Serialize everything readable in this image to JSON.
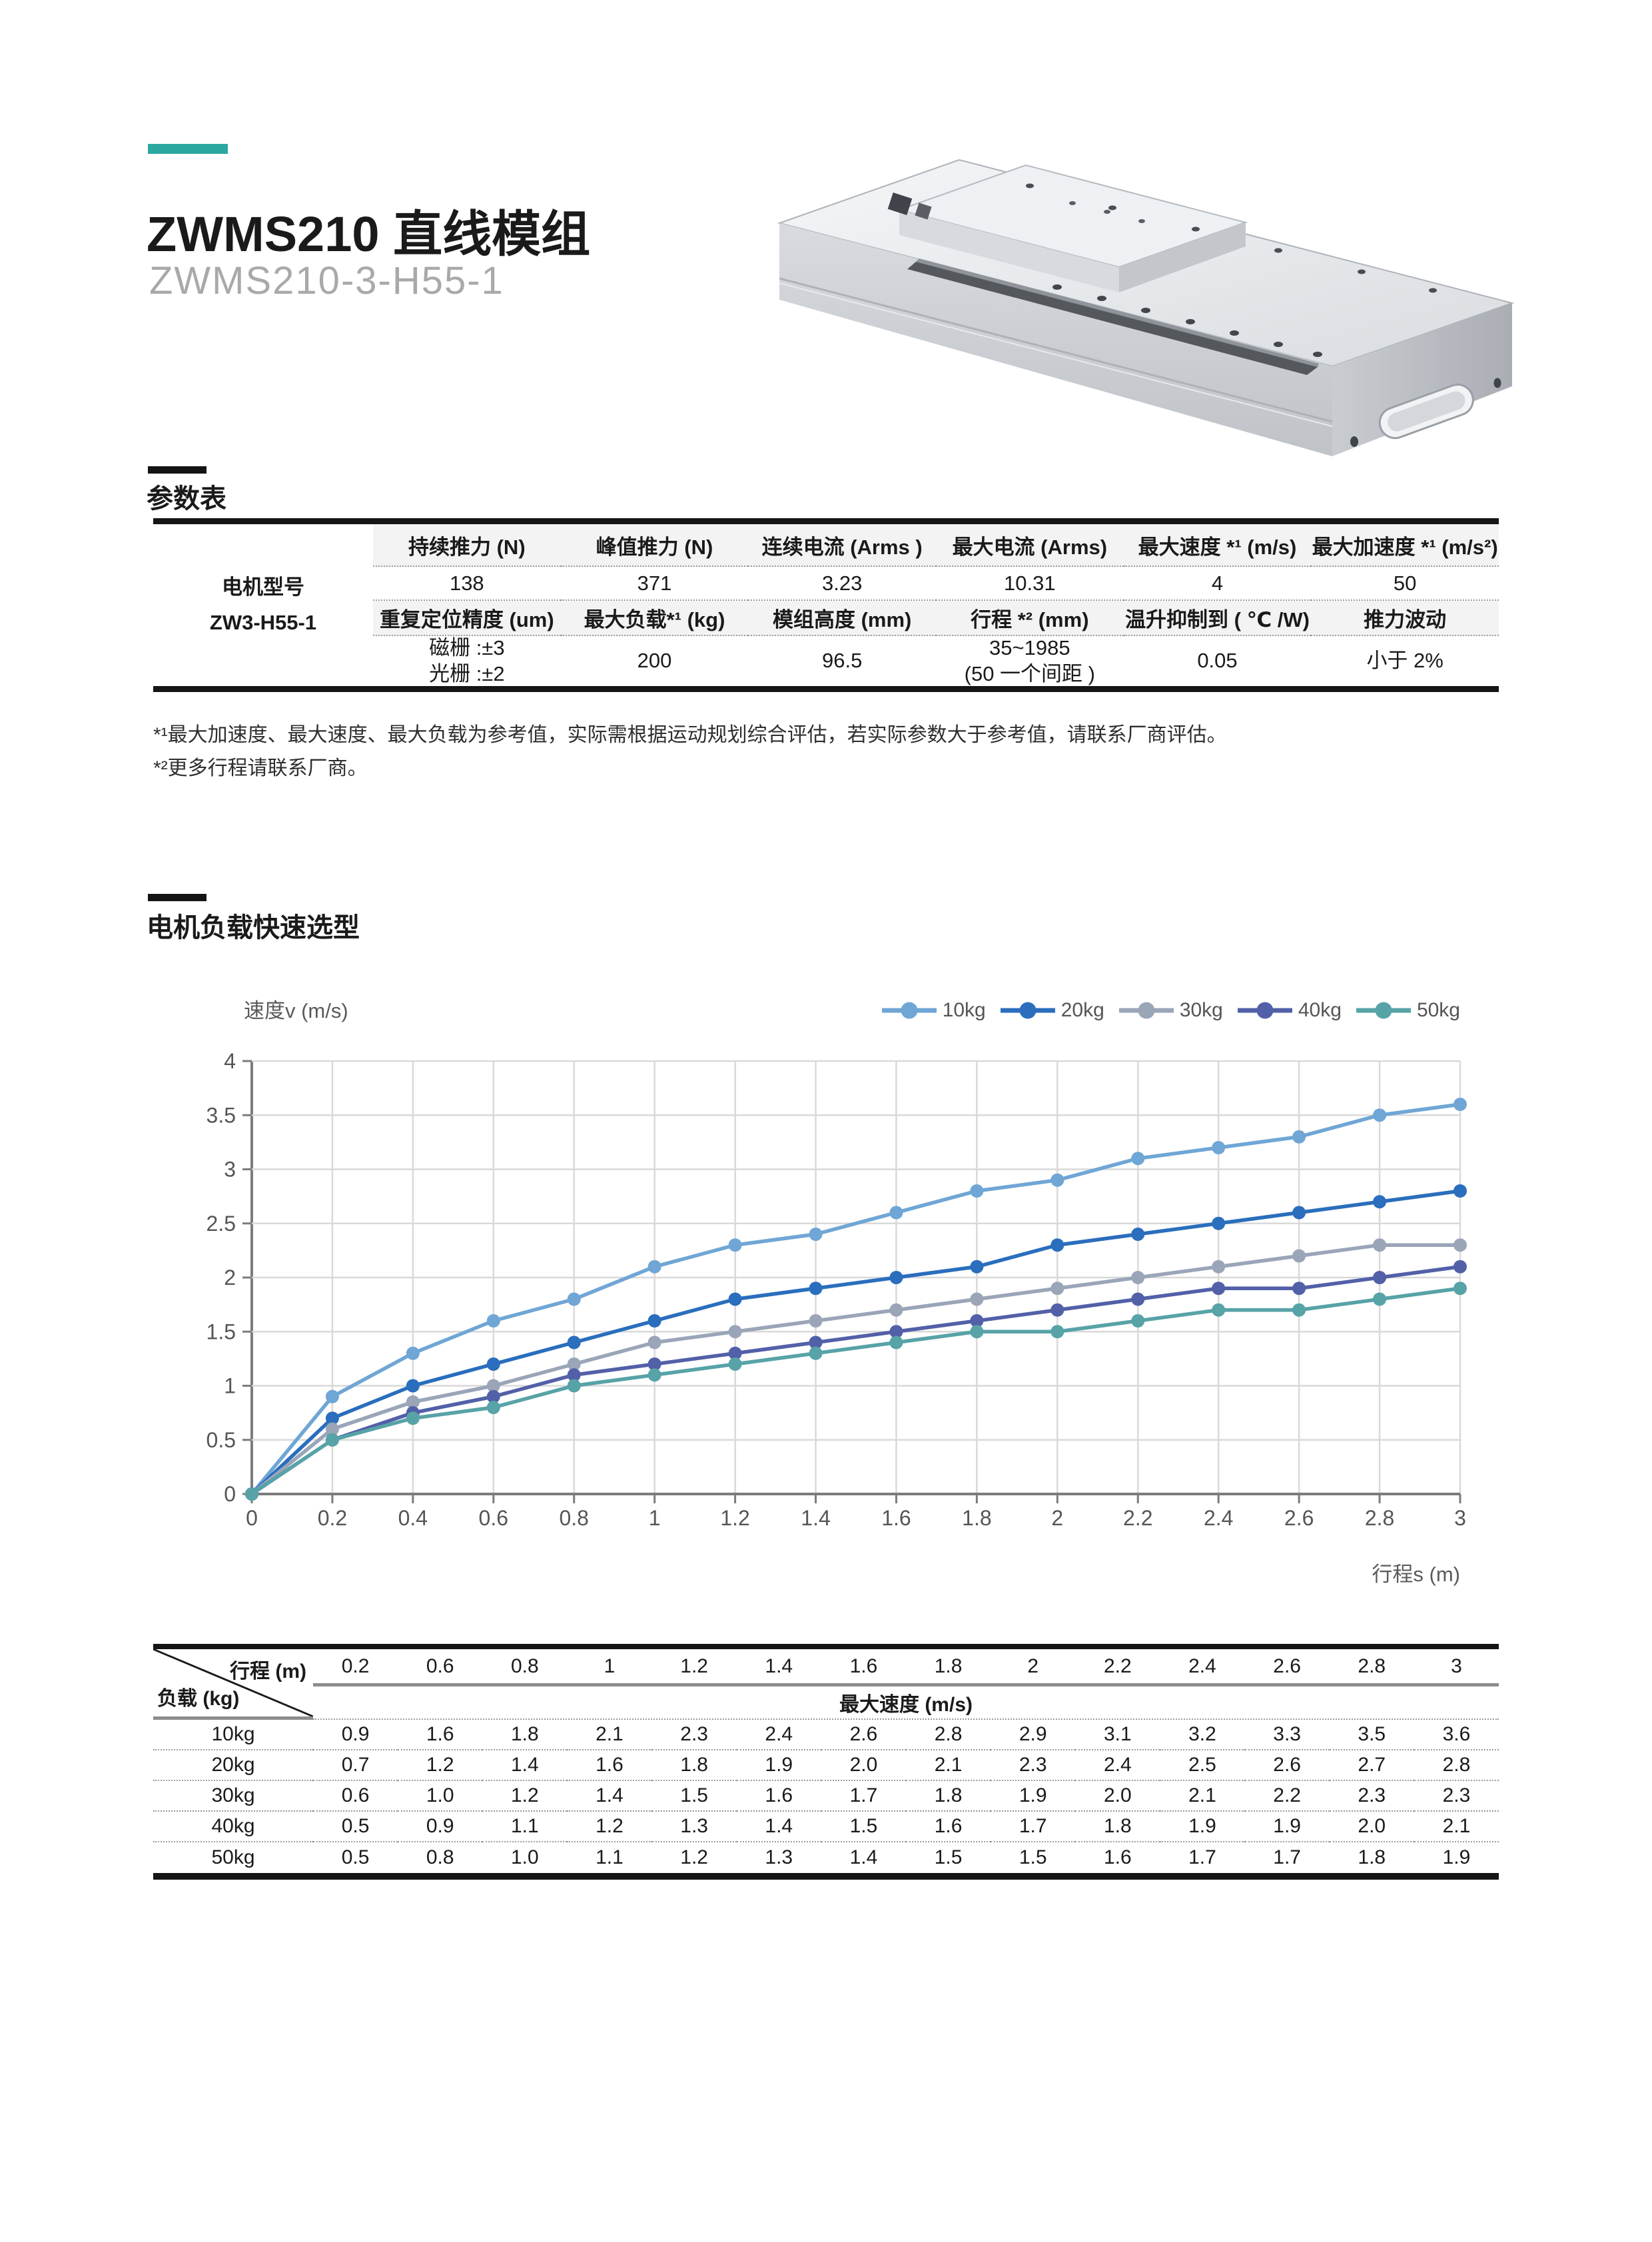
{
  "page": {
    "title": "ZWMS210 直线模组",
    "subtitle": "ZWMS210-3-H55-1",
    "accent_color": "#2BA89F",
    "heading_bar_color": "#141414"
  },
  "product_image": {
    "alt": "ZWMS210 直线模组 3D 渲染图"
  },
  "spec_section": {
    "heading": "参数表",
    "table": {
      "row_label": [
        "电机型号",
        "ZW3-H55-1"
      ],
      "header1": [
        "持续推力 (N)",
        "峰值推力 (N)",
        "连续电流 (Arms )",
        "最大电流 (Arms)",
        "最大速度 *¹ (m/s)",
        "最大加速度 *¹ (m/s²)"
      ],
      "values1": [
        "138",
        "371",
        "3.23",
        "10.31",
        "4",
        "50"
      ],
      "header2": [
        "重复定位精度 (um)",
        "最大负载*¹ (kg)",
        "模组高度 (mm)",
        "行程 *² (mm)",
        "温升抑制到 ( ℃ /W)",
        "推力波动"
      ],
      "values2": [
        "磁栅 :±3\n光栅 :±2",
        "200",
        "96.5",
        "35~1985\n(50 一个间距 )",
        "0.05",
        "小于 2%"
      ]
    },
    "footnotes": [
      "*¹最大加速度、最大速度、最大负载为参考值，实际需根据运动规划综合评估，若实际参数大于参考值，请联系厂商评估。",
      "*²更多行程请联系厂商。"
    ]
  },
  "selection_section": {
    "heading": "电机负载快速选型",
    "chart_data": {
      "type": "line",
      "title": "",
      "ylabel": "速度v (m/s)",
      "xlabel": "行程s (m)",
      "xlim": [
        0,
        3
      ],
      "ylim": [
        0,
        4
      ],
      "grid": true,
      "legend_position": "top-right",
      "xticks": [
        "0",
        "0.2",
        "0.4",
        "0.6",
        "0.8",
        "1",
        "1.2",
        "1.4",
        "1.6",
        "1.8",
        "2",
        "2.2",
        "2.4",
        "2.6",
        "2.8",
        "3"
      ],
      "yticks": [
        "0",
        "0.5",
        "1",
        "1.5",
        "2",
        "2.5",
        "3",
        "3.5",
        "4"
      ],
      "x": [
        0,
        0.2,
        0.4,
        0.6,
        0.8,
        1,
        1.2,
        1.4,
        1.6,
        1.8,
        2,
        2.2,
        2.4,
        2.6,
        2.8,
        3
      ],
      "series": [
        {
          "name": "10kg",
          "color": "#6FA6D5",
          "values": [
            0,
            0.9,
            1.3,
            1.6,
            1.8,
            2.1,
            2.3,
            2.4,
            2.6,
            2.8,
            2.9,
            3.1,
            3.2,
            3.3,
            3.5,
            3.6
          ]
        },
        {
          "name": "20kg",
          "color": "#2A6EBD",
          "values": [
            0,
            0.7,
            1.0,
            1.2,
            1.4,
            1.6,
            1.8,
            1.9,
            2.0,
            2.1,
            2.3,
            2.4,
            2.5,
            2.6,
            2.7,
            2.8
          ]
        },
        {
          "name": "30kg",
          "color": "#9AA5B8",
          "values": [
            0,
            0.6,
            0.85,
            1.0,
            1.2,
            1.4,
            1.5,
            1.6,
            1.7,
            1.8,
            1.9,
            2.0,
            2.1,
            2.2,
            2.3,
            2.3
          ]
        },
        {
          "name": "40kg",
          "color": "#5260A8",
          "values": [
            0,
            0.5,
            0.75,
            0.9,
            1.1,
            1.2,
            1.3,
            1.4,
            1.5,
            1.6,
            1.7,
            1.8,
            1.9,
            1.9,
            2.0,
            2.1
          ]
        },
        {
          "name": "50kg",
          "color": "#57A3A7",
          "values": [
            0,
            0.5,
            0.7,
            0.8,
            1.0,
            1.1,
            1.2,
            1.3,
            1.4,
            1.5,
            1.5,
            1.6,
            1.7,
            1.7,
            1.8,
            1.9
          ]
        }
      ]
    },
    "speed_table": {
      "col_header_label": "行程 (m)",
      "row_header_label": "负载 (kg)",
      "span_header": "最大速度 (m/s)",
      "columns": [
        "0.2",
        "0.6",
        "0.8",
        "1",
        "1.2",
        "1.4",
        "1.6",
        "1.8",
        "2",
        "2.2",
        "2.4",
        "2.6",
        "2.8",
        "3"
      ],
      "rows": [
        {
          "load": "10kg",
          "values": [
            "0.9",
            "1.6",
            "1.8",
            "2.1",
            "2.3",
            "2.4",
            "2.6",
            "2.8",
            "2.9",
            "3.1",
            "3.2",
            "3.3",
            "3.5",
            "3.6"
          ]
        },
        {
          "load": "20kg",
          "values": [
            "0.7",
            "1.2",
            "1.4",
            "1.6",
            "1.8",
            "1.9",
            "2.0",
            "2.1",
            "2.3",
            "2.4",
            "2.5",
            "2.6",
            "2.7",
            "2.8"
          ]
        },
        {
          "load": "30kg",
          "values": [
            "0.6",
            "1.0",
            "1.2",
            "1.4",
            "1.5",
            "1.6",
            "1.7",
            "1.8",
            "1.9",
            "2.0",
            "2.1",
            "2.2",
            "2.3",
            "2.3"
          ]
        },
        {
          "load": "40kg",
          "values": [
            "0.5",
            "0.9",
            "1.1",
            "1.2",
            "1.3",
            "1.4",
            "1.5",
            "1.6",
            "1.7",
            "1.8",
            "1.9",
            "1.9",
            "2.0",
            "2.1"
          ]
        },
        {
          "load": "50kg",
          "values": [
            "0.5",
            "0.8",
            "1.0",
            "1.1",
            "1.2",
            "1.3",
            "1.4",
            "1.5",
            "1.5",
            "1.6",
            "1.7",
            "1.7",
            "1.8",
            "1.9"
          ]
        }
      ]
    }
  }
}
